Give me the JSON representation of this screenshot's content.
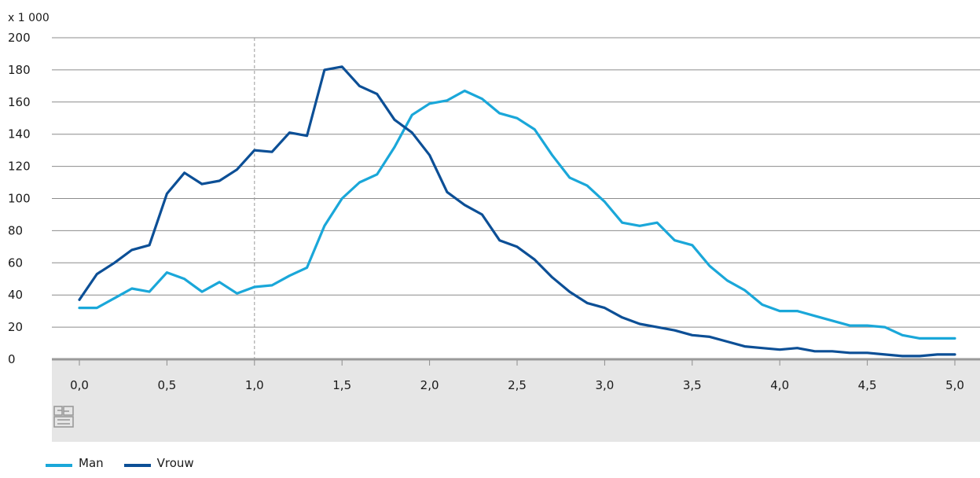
{
  "chart_data": {
    "type": "line",
    "unit_label": "x 1 000",
    "ylim": [
      0,
      200
    ],
    "yticks": [
      0,
      20,
      40,
      60,
      80,
      100,
      120,
      140,
      160,
      180,
      200
    ],
    "xlim": [
      0,
      5
    ],
    "xticks": [
      "0,0",
      "0,5",
      "1,0",
      "1,5",
      "2,0",
      "2,5",
      "3,0",
      "3,5",
      "4,0",
      "4,5",
      "5,0"
    ],
    "reference_line_x": 1.0,
    "grid": "horizontal",
    "legend_position": "bottom-left",
    "x": [
      0.0,
      0.1,
      0.2,
      0.3,
      0.4,
      0.5,
      0.6,
      0.7,
      0.8,
      0.9,
      1.0,
      1.1,
      1.2,
      1.3,
      1.4,
      1.5,
      1.6,
      1.7,
      1.8,
      1.9,
      2.0,
      2.1,
      2.2,
      2.3,
      2.4,
      2.5,
      2.6,
      2.7,
      2.8,
      2.9,
      3.0,
      3.1,
      3.2,
      3.3,
      3.4,
      3.5,
      3.6,
      3.7,
      3.8,
      3.9,
      4.0,
      4.1,
      4.2,
      4.3,
      4.4,
      4.5,
      4.6,
      4.7,
      4.8,
      4.9,
      5.0
    ],
    "series": [
      {
        "name": "Man",
        "color": "#1aa7d9",
        "values": [
          32,
          32,
          38,
          44,
          42,
          54,
          50,
          42,
          48,
          41,
          45,
          46,
          52,
          57,
          83,
          100,
          110,
          115,
          132,
          152,
          159,
          161,
          167,
          162,
          153,
          150,
          143,
          127,
          113,
          108,
          98,
          85,
          83,
          85,
          74,
          71,
          58,
          49,
          43,
          34,
          30,
          30,
          27,
          24,
          21,
          21,
          20,
          15,
          13,
          13,
          13
        ]
      },
      {
        "name": "Vrouw",
        "color": "#0c4f96",
        "values": [
          37,
          53,
          60,
          68,
          71,
          103,
          116,
          109,
          111,
          118,
          130,
          129,
          141,
          139,
          180,
          182,
          170,
          165,
          149,
          141,
          127,
          104,
          96,
          90,
          74,
          70,
          62,
          51,
          42,
          35,
          32,
          26,
          22,
          20,
          18,
          15,
          14,
          11,
          8,
          7,
          6,
          7,
          5,
          5,
          4,
          4,
          3,
          2,
          2,
          3,
          3
        ]
      }
    ]
  },
  "footer": {
    "logo_icon": "cbs-logo-icon"
  }
}
